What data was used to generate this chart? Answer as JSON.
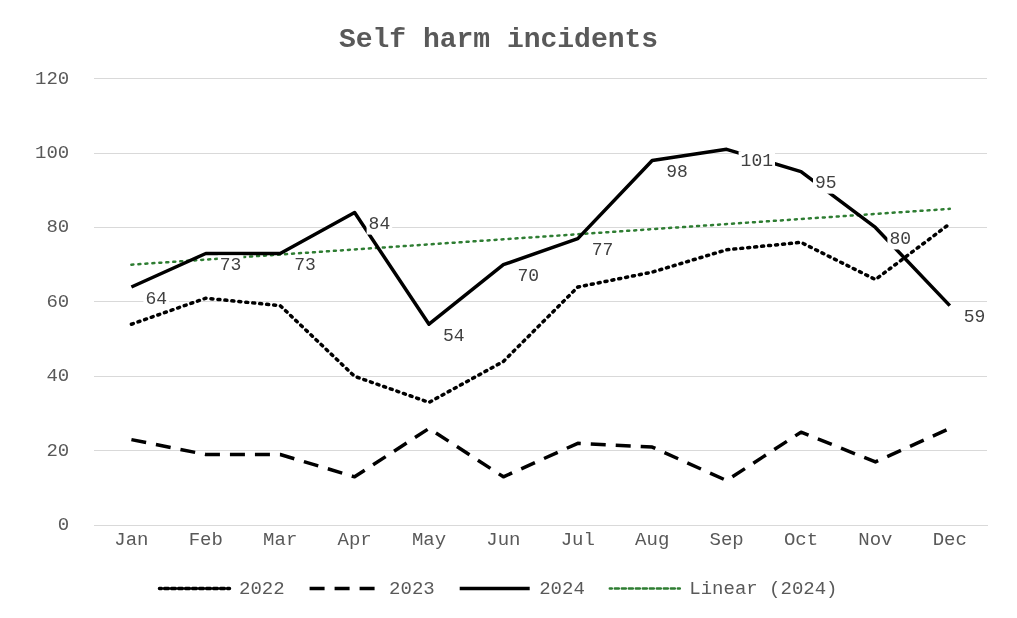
{
  "chart_data": {
    "type": "line",
    "title": "Self harm incidents",
    "categories": [
      "Jan",
      "Feb",
      "Mar",
      "Apr",
      "May",
      "Jun",
      "Jul",
      "Aug",
      "Sep",
      "Oct",
      "Nov",
      "Dec"
    ],
    "series": [
      {
        "name": "2022",
        "color": "#000000",
        "line_style": "dotted",
        "values": [
          54,
          61,
          59,
          40,
          33,
          44,
          64,
          68,
          74,
          76,
          66,
          81
        ]
      },
      {
        "name": "2023",
        "color": "#000000",
        "line_style": "dashed",
        "values": [
          23,
          19,
          19,
          13,
          26,
          13,
          22,
          21,
          12,
          25,
          17,
          26
        ]
      },
      {
        "name": "2024",
        "color": "#000000",
        "line_style": "solid",
        "values": [
          64,
          73,
          73,
          84,
          54,
          70,
          77,
          98,
          101,
          95,
          80,
          59
        ],
        "value_labels": [
          "64",
          "73",
          "73",
          "84",
          "54",
          "70",
          "77",
          "98",
          "101",
          "95",
          "80",
          "59"
        ]
      },
      {
        "name": "Linear (2024)",
        "color": "#2e7d32",
        "line_style": "dotted",
        "x": [
          "Jan",
          "Dec"
        ],
        "values": [
          70,
          85
        ]
      }
    ],
    "ylim": [
      0,
      120
    ],
    "yticks": [
      0,
      20,
      40,
      60,
      80,
      100,
      120
    ],
    "grid": "y",
    "legend": "bottom",
    "marker": "none"
  }
}
